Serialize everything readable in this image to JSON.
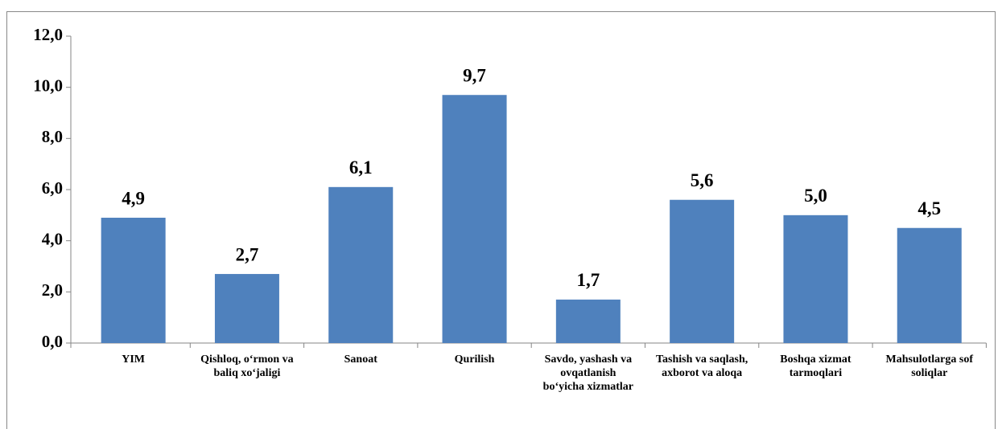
{
  "chart_data": {
    "type": "bar",
    "categories": [
      "YIM",
      "Qishloq, o‘rmon va baliq xo‘jaligi",
      "Sanoat",
      "Qurilish",
      "Savdo, yashash va ovqatlanish bo‘yicha xizmatlar",
      "Tashish va saqlash, axborot va aloqa",
      "Boshqa xizmat tarmoqlari",
      "Mahsulotlarga sof soliqlar"
    ],
    "values": [
      4.9,
      2.7,
      6.1,
      9.7,
      1.7,
      5.6,
      5.0,
      4.5
    ],
    "value_labels": [
      "4,9",
      "2,7",
      "6,1",
      "9,7",
      "1,7",
      "5,6",
      "5,0",
      "4,5"
    ],
    "color": "#4f81bd",
    "ylim": [
      0,
      12
    ],
    "yticks": [
      {
        "value": 0,
        "label": "0,0"
      },
      {
        "value": 2,
        "label": "2,0"
      },
      {
        "value": 4,
        "label": "4,0"
      },
      {
        "value": 6,
        "label": "6,0"
      },
      {
        "value": 8,
        "label": "8,0"
      },
      {
        "value": 10,
        "label": "10,0"
      },
      {
        "value": 12,
        "label": "12,0"
      }
    ],
    "grid": false
  }
}
